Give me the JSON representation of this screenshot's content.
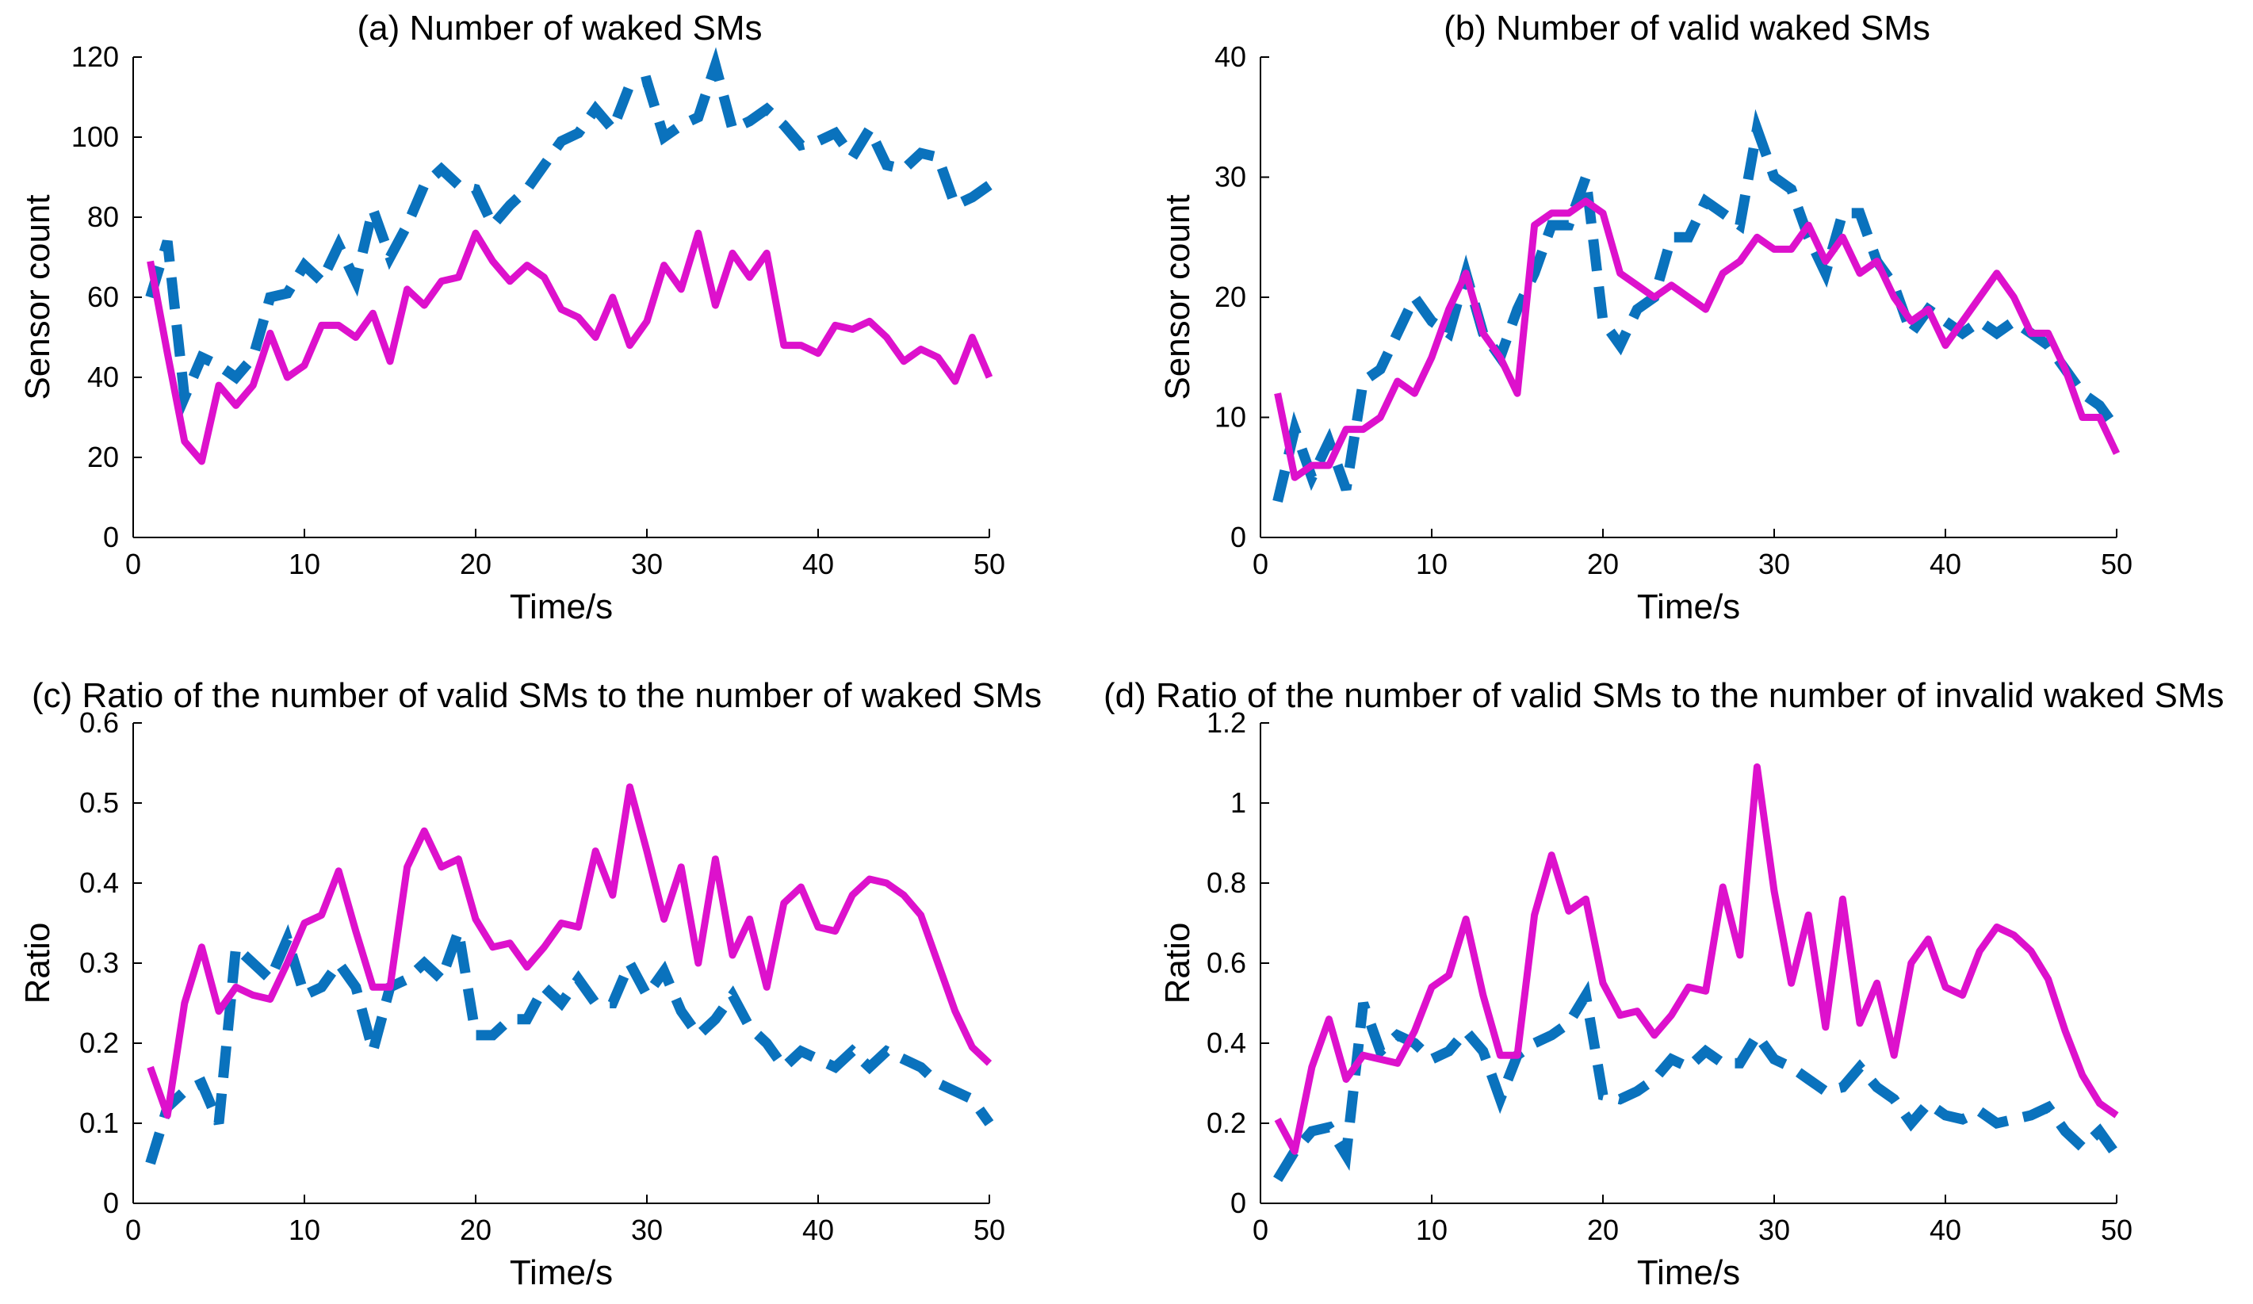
{
  "colors": {
    "solid_series": "#DD11CC",
    "dashed_series": "#0A72BD",
    "axis": "#000000"
  },
  "chart_data": [
    {
      "type": "line",
      "title": "(a) Number of waked SMs",
      "xlabel": "Time/s",
      "ylabel": "Sensor count",
      "xlim": [
        0,
        50
      ],
      "ylim": [
        0,
        120
      ],
      "xticks": [
        0,
        10,
        20,
        30,
        40,
        50
      ],
      "yticks": [
        0,
        20,
        40,
        60,
        80,
        100,
        120
      ],
      "tick_labels_x": [
        "0",
        "10",
        "20",
        "30",
        "40",
        "50"
      ],
      "tick_labels_y": [
        "0",
        "20",
        "40",
        "60",
        "80",
        "100",
        "120"
      ],
      "x": [
        1,
        2,
        3,
        4,
        5,
        6,
        7,
        8,
        9,
        10,
        11,
        12,
        13,
        14,
        15,
        16,
        17,
        18,
        19,
        20,
        21,
        22,
        23,
        24,
        25,
        26,
        27,
        28,
        29,
        30,
        31,
        32,
        33,
        34,
        35,
        36,
        37,
        38,
        39,
        40,
        41,
        42,
        43,
        44,
        45,
        46,
        47,
        48,
        49,
        50
      ],
      "series": [
        {
          "name": "dashed",
          "style": "dashed",
          "values": [
            60,
            74,
            35,
            45,
            43,
            40,
            45,
            60,
            61,
            68,
            64,
            73,
            64,
            82,
            70,
            78,
            88,
            92,
            88,
            87,
            78,
            83,
            87,
            93,
            99,
            101,
            107,
            102,
            113,
            114,
            100,
            103,
            105,
            118,
            102,
            104,
            107,
            103,
            98,
            99,
            101,
            95,
            102,
            93,
            92,
            96,
            95,
            83,
            85,
            88
          ]
        },
        {
          "name": "solid",
          "style": "solid",
          "values": [
            69,
            46,
            24,
            19,
            38,
            33,
            38,
            51,
            40,
            43,
            53,
            53,
            50,
            56,
            44,
            62,
            58,
            64,
            65,
            76,
            69,
            64,
            68,
            65,
            57,
            55,
            50,
            60,
            48,
            54,
            68,
            62,
            76,
            58,
            71,
            65,
            71,
            48,
            48,
            46,
            53,
            52,
            54,
            50,
            44,
            47,
            45,
            39,
            50,
            40
          ]
        }
      ]
    },
    {
      "type": "line",
      "title": "(b) Number of valid waked SMs",
      "xlabel": "Time/s",
      "ylabel": "Sensor count",
      "xlim": [
        0,
        50
      ],
      "ylim": [
        0,
        40
      ],
      "xticks": [
        0,
        10,
        20,
        30,
        40,
        50
      ],
      "yticks": [
        0,
        10,
        20,
        30,
        40
      ],
      "tick_labels_x": [
        "0",
        "10",
        "20",
        "30",
        "40",
        "50"
      ],
      "tick_labels_y": [
        "0",
        "10",
        "20",
        "30",
        "40"
      ],
      "x": [
        1,
        2,
        3,
        4,
        5,
        6,
        7,
        8,
        9,
        10,
        11,
        12,
        13,
        14,
        15,
        16,
        17,
        18,
        19,
        20,
        21,
        22,
        23,
        24,
        25,
        26,
        27,
        28,
        29,
        30,
        31,
        32,
        33,
        34,
        35,
        36,
        37,
        38,
        39,
        40,
        41,
        42,
        43,
        44,
        45,
        46,
        47,
        48,
        49,
        50
      ],
      "series": [
        {
          "name": "dashed",
          "style": "dashed",
          "values": [
            3,
            9,
            5,
            8,
            4,
            13,
            14,
            17,
            20,
            18,
            17,
            22,
            17,
            15,
            19,
            22,
            26,
            26,
            30,
            18,
            16,
            19,
            20,
            25,
            25,
            28,
            27,
            26,
            34,
            30,
            29,
            25,
            22,
            27,
            27,
            23,
            21,
            17,
            19,
            18,
            17,
            18,
            17,
            18,
            17,
            16,
            14,
            12,
            11,
            9
          ]
        },
        {
          "name": "solid",
          "style": "solid",
          "values": [
            12,
            5,
            6,
            6,
            9,
            9,
            10,
            13,
            12,
            15,
            19,
            22,
            17,
            15,
            12,
            26,
            27,
            27,
            28,
            27,
            22,
            21,
            20,
            21,
            20,
            19,
            22,
            23,
            25,
            24,
            24,
            26,
            23,
            25,
            22,
            23,
            20,
            18,
            19,
            16,
            18,
            20,
            22,
            20,
            17,
            17,
            14,
            10,
            10,
            7
          ]
        }
      ]
    },
    {
      "type": "line",
      "title": "(c) Ratio of the number of valid SMs to the number of waked SMs",
      "xlabel": "Time/s",
      "ylabel": "Ratio",
      "xlim": [
        0,
        50
      ],
      "ylim": [
        0,
        0.6
      ],
      "xticks": [
        0,
        10,
        20,
        30,
        40,
        50
      ],
      "yticks": [
        0,
        0.1,
        0.2,
        0.3,
        0.4,
        0.5,
        0.6
      ],
      "tick_labels_x": [
        "0",
        "10",
        "20",
        "30",
        "40",
        "50"
      ],
      "tick_labels_y": [
        "0",
        "0.1",
        "0.2",
        "0.3",
        "0.4",
        "0.5",
        "0.6"
      ],
      "x": [
        1,
        2,
        3,
        4,
        5,
        6,
        7,
        8,
        9,
        10,
        11,
        12,
        13,
        14,
        15,
        16,
        17,
        18,
        19,
        20,
        21,
        22,
        23,
        24,
        25,
        26,
        27,
        28,
        29,
        30,
        31,
        32,
        33,
        34,
        35,
        36,
        37,
        38,
        39,
        40,
        41,
        42,
        43,
        44,
        45,
        46,
        47,
        48,
        49,
        50
      ],
      "series": [
        {
          "name": "dashed",
          "style": "dashed",
          "values": [
            0.05,
            0.12,
            0.14,
            0.15,
            0.1,
            0.32,
            0.3,
            0.28,
            0.33,
            0.26,
            0.27,
            0.3,
            0.27,
            0.19,
            0.27,
            0.28,
            0.3,
            0.28,
            0.34,
            0.21,
            0.21,
            0.23,
            0.23,
            0.27,
            0.25,
            0.28,
            0.25,
            0.25,
            0.3,
            0.26,
            0.29,
            0.24,
            0.21,
            0.23,
            0.26,
            0.22,
            0.2,
            0.17,
            0.19,
            0.18,
            0.17,
            0.19,
            0.17,
            0.19,
            0.18,
            0.17,
            0.15,
            0.14,
            0.13,
            0.1
          ]
        },
        {
          "name": "solid",
          "style": "solid",
          "values": [
            0.17,
            0.11,
            0.25,
            0.32,
            0.24,
            0.27,
            0.26,
            0.255,
            0.3,
            0.35,
            0.36,
            0.415,
            0.34,
            0.27,
            0.27,
            0.42,
            0.465,
            0.42,
            0.43,
            0.355,
            0.32,
            0.325,
            0.295,
            0.32,
            0.35,
            0.345,
            0.44,
            0.385,
            0.52,
            0.44,
            0.355,
            0.42,
            0.3,
            0.43,
            0.31,
            0.355,
            0.27,
            0.375,
            0.395,
            0.345,
            0.34,
            0.385,
            0.405,
            0.4,
            0.385,
            0.36,
            0.3,
            0.24,
            0.195,
            0.175
          ]
        }
      ]
    },
    {
      "type": "line",
      "title": "(d) Ratio of the number of valid SMs to the number of invalid waked SMs",
      "xlabel": "Time/s",
      "ylabel": "Ratio",
      "xlim": [
        0,
        50
      ],
      "ylim": [
        0,
        1.2
      ],
      "xticks": [
        0,
        10,
        20,
        30,
        40,
        50
      ],
      "yticks": [
        0,
        0.2,
        0.4,
        0.6,
        0.8,
        1,
        1.2
      ],
      "tick_labels_x": [
        "0",
        "10",
        "20",
        "30",
        "40",
        "50"
      ],
      "tick_labels_y": [
        "0",
        "0.2",
        "0.4",
        "0.6",
        "0.8",
        "1",
        "1.2"
      ],
      "x": [
        1,
        2,
        3,
        4,
        5,
        6,
        7,
        8,
        9,
        10,
        11,
        12,
        13,
        14,
        15,
        16,
        17,
        18,
        19,
        20,
        21,
        22,
        23,
        24,
        25,
        26,
        27,
        28,
        29,
        30,
        31,
        32,
        33,
        34,
        35,
        36,
        37,
        38,
        39,
        40,
        41,
        42,
        43,
        44,
        45,
        46,
        47,
        48,
        49,
        50
      ],
      "series": [
        {
          "name": "dashed",
          "style": "dashed",
          "values": [
            0.06,
            0.13,
            0.18,
            0.19,
            0.12,
            0.5,
            0.38,
            0.42,
            0.4,
            0.36,
            0.38,
            0.43,
            0.38,
            0.26,
            0.37,
            0.4,
            0.42,
            0.45,
            0.52,
            0.27,
            0.26,
            0.28,
            0.31,
            0.36,
            0.34,
            0.38,
            0.35,
            0.35,
            0.42,
            0.36,
            0.34,
            0.31,
            0.28,
            0.29,
            0.34,
            0.29,
            0.26,
            0.2,
            0.25,
            0.22,
            0.21,
            0.23,
            0.2,
            0.21,
            0.22,
            0.24,
            0.18,
            0.14,
            0.18,
            0.12
          ]
        },
        {
          "name": "solid",
          "style": "solid",
          "values": [
            0.21,
            0.13,
            0.34,
            0.46,
            0.31,
            0.37,
            0.36,
            0.35,
            0.43,
            0.54,
            0.57,
            0.71,
            0.52,
            0.37,
            0.37,
            0.72,
            0.87,
            0.73,
            0.76,
            0.55,
            0.47,
            0.48,
            0.42,
            0.47,
            0.54,
            0.53,
            0.79,
            0.62,
            1.09,
            0.78,
            0.55,
            0.72,
            0.44,
            0.76,
            0.45,
            0.55,
            0.37,
            0.6,
            0.66,
            0.54,
            0.52,
            0.63,
            0.69,
            0.67,
            0.63,
            0.56,
            0.43,
            0.32,
            0.25,
            0.22
          ]
        }
      ]
    }
  ]
}
